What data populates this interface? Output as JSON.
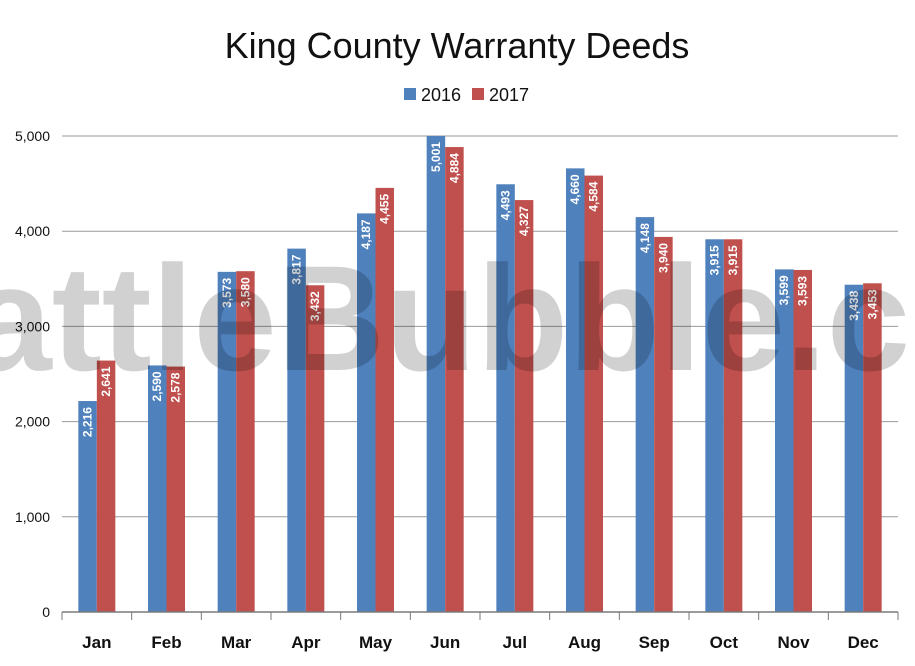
{
  "chart_data": {
    "type": "bar",
    "title": "King County Warranty Deeds",
    "watermark": "SeattleBubble.com",
    "categories": [
      "Jan",
      "Feb",
      "Mar",
      "Apr",
      "May",
      "Jun",
      "Jul",
      "Aug",
      "Sep",
      "Oct",
      "Nov",
      "Dec"
    ],
    "series": [
      {
        "name": "2016",
        "color": "#4f81bd",
        "values": [
          2216,
          2590,
          3573,
          3817,
          4187,
          5001,
          4493,
          4660,
          4148,
          3915,
          3599,
          3438
        ]
      },
      {
        "name": "2017",
        "color": "#c0504d",
        "values": [
          2641,
          2578,
          3580,
          3432,
          4455,
          4884,
          4327,
          4584,
          3940,
          3915,
          3593,
          3453
        ]
      }
    ],
    "ylim": [
      0,
      5000
    ],
    "yticks": [
      0,
      1000,
      2000,
      3000,
      4000,
      5000
    ],
    "ytick_labels": [
      "0",
      "1,000",
      "2,000",
      "3,000",
      "4,000",
      "5,000"
    ],
    "legend_position": "top-center",
    "grid": true
  }
}
